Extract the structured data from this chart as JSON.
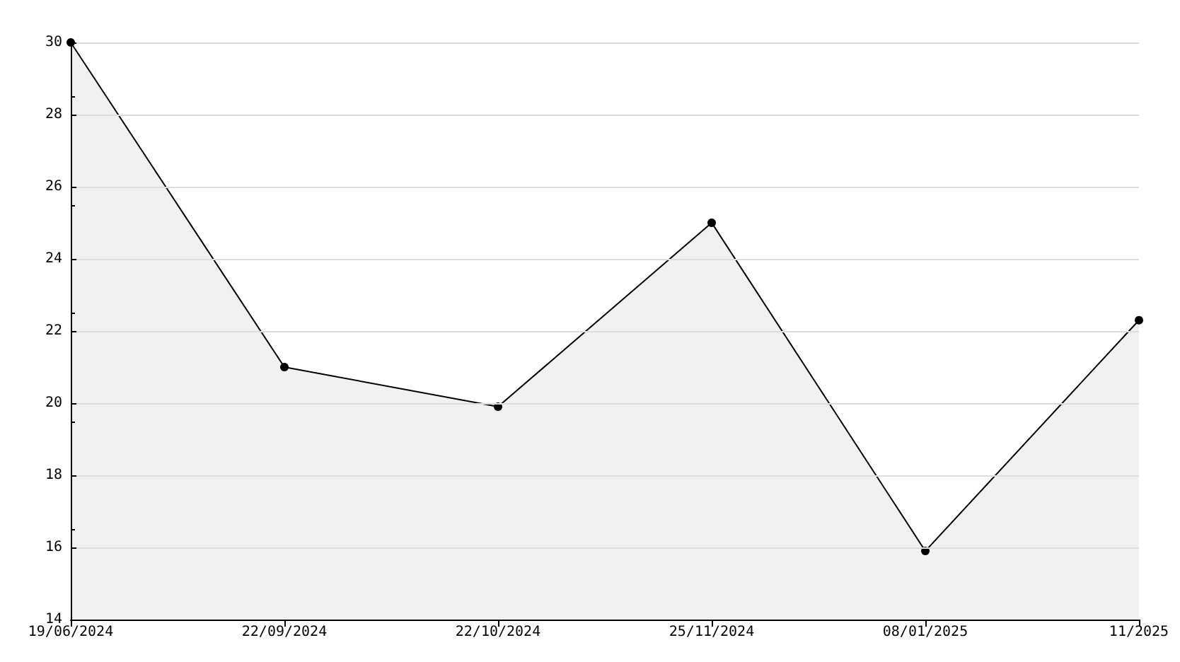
{
  "chart_data": {
    "type": "area",
    "categories": [
      "19/06/2024",
      "22/09/2024",
      "22/10/2024",
      "25/11/2024",
      "08/01/2025",
      "11/2025"
    ],
    "series": [
      {
        "color": "#000000",
        "values": [
          30,
          21,
          19.9,
          25,
          15.9,
          22.3
        ]
      }
    ],
    "ylim": [
      14,
      30
    ],
    "yticks": [
      14,
      16,
      18,
      20,
      22,
      24,
      26,
      28,
      30
    ],
    "grid": "y",
    "marker": "circle",
    "line_style": "solid"
  }
}
